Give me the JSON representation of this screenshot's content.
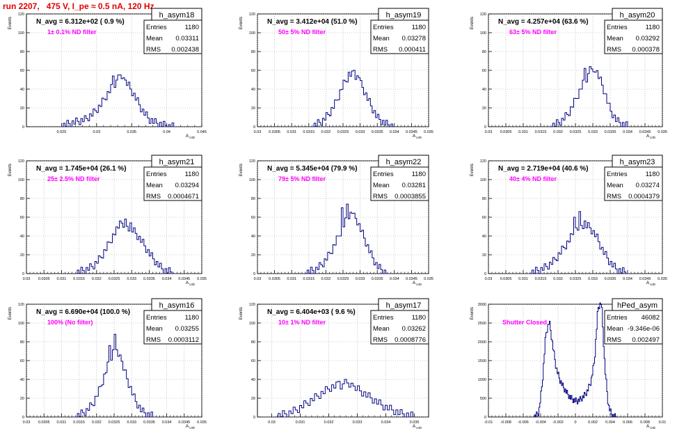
{
  "page_title": "run 2207,   475 V, I_pe ≈ 0.5 nA, 120 Hz",
  "colors": {
    "histogram": "#000080",
    "annotation": "#ff00ff",
    "title": "#e00000",
    "text": "#000000",
    "grid": "#999999"
  },
  "stats_labels": {
    "entries": "Entries",
    "mean": "Mean",
    "rms": "RMS"
  },
  "ylabel": "Events",
  "xlabel_main": "A",
  "xlabel_sub": "UID",
  "chart_data": [
    {
      "type": "bar",
      "name": "h_asym18",
      "stats": {
        "entries": "1180",
        "mean": "0.03311",
        "rms": "0.002438"
      },
      "navg": "N_avg = 6.312e+02 ( 0.9 %)",
      "annotation": "1± 0.1% ND filter",
      "xlim": [
        0.02,
        0.045
      ],
      "ylim": [
        0,
        120
      ],
      "xticks": [
        "0.025",
        "0.03",
        "0.035",
        "0.04",
        "0.045"
      ],
      "xticks_vals": [
        0.025,
        0.03,
        0.035,
        0.04,
        0.045
      ],
      "yticks": [
        0,
        20,
        40,
        60,
        80,
        100,
        120
      ],
      "x": [
        0.0255,
        0.0265,
        0.0275,
        0.0285,
        0.0295,
        0.0305,
        0.0315,
        0.0325,
        0.0335,
        0.0345,
        0.0355,
        0.0365,
        0.0375,
        0.0385,
        0.0395,
        0.0405
      ],
      "values": [
        2,
        4,
        6,
        8,
        14,
        22,
        34,
        45,
        52,
        45,
        32,
        18,
        8,
        4,
        2,
        0
      ],
      "peaks": [
        55,
        54,
        52
      ]
    },
    {
      "type": "bar",
      "name": "h_asym19",
      "stats": {
        "entries": "1180",
        "mean": "0.03278",
        "rms": "0.000411"
      },
      "navg": "N_avg = 3.412e+04 (51.0 %)",
      "annotation": "50± 5% ND filter",
      "xlim": [
        0.03,
        0.035
      ],
      "ylim": [
        0,
        120
      ],
      "xticks": [
        "0.03",
        "0.0305",
        "0.031",
        "0.0315",
        "0.032",
        "0.0325",
        "0.033",
        "0.0335",
        "0.034",
        "0.0345",
        "0.035"
      ],
      "xticks_vals": [
        0.03,
        0.0305,
        0.031,
        0.0315,
        0.032,
        0.0325,
        0.033,
        0.0335,
        0.034,
        0.0345,
        0.035
      ],
      "yticks": [
        0,
        20,
        40,
        60,
        80,
        100,
        120
      ],
      "x": [
        0.0317,
        0.0319,
        0.0321,
        0.0323,
        0.0325,
        0.0327,
        0.0329,
        0.0331,
        0.0333,
        0.0335,
        0.0337,
        0.0339
      ],
      "values": [
        2,
        6,
        14,
        26,
        44,
        56,
        54,
        40,
        24,
        10,
        4,
        1
      ],
      "peaks": [
        60,
        58,
        52
      ]
    },
    {
      "type": "bar",
      "name": "h_asym20",
      "stats": {
        "entries": "1180",
        "mean": "0.03292",
        "rms": "0.000378"
      },
      "navg": "N_avg = 4.257e+04 (63.6 %)",
      "annotation": "63± 5% ND filter",
      "xlim": [
        0.03,
        0.035
      ],
      "ylim": [
        0,
        120
      ],
      "xticks": [
        "0.03",
        "0.0305",
        "0.031",
        "0.0315",
        "0.032",
        "0.0325",
        "0.033",
        "0.0335",
        "0.034",
        "0.0345",
        "0.035"
      ],
      "xticks_vals": [
        0.03,
        0.0305,
        0.031,
        0.0315,
        0.032,
        0.0325,
        0.033,
        0.0335,
        0.034,
        0.0345,
        0.035
      ],
      "yticks": [
        0,
        20,
        40,
        60,
        80,
        100,
        120
      ],
      "x": [
        0.0319,
        0.0321,
        0.0323,
        0.0325,
        0.0327,
        0.0329,
        0.0331,
        0.0333,
        0.0335,
        0.0337,
        0.0339
      ],
      "values": [
        2,
        6,
        14,
        28,
        44,
        56,
        60,
        42,
        18,
        6,
        2
      ],
      "peaks": [
        64,
        62,
        58
      ]
    },
    {
      "type": "bar",
      "name": "h_asym21",
      "stats": {
        "entries": "1180",
        "mean": "0.03294",
        "rms": "0.0004671"
      },
      "navg": "N_avg = 1.745e+04 (26.1 %)",
      "annotation": "25± 2.5% ND filter",
      "xlim": [
        0.03,
        0.035
      ],
      "ylim": [
        0,
        120
      ],
      "xticks": [
        "0.03",
        "0.0305",
        "0.031",
        "0.0315",
        "0.032",
        "0.0325",
        "0.033",
        "0.0335",
        "0.034",
        "0.0345",
        "0.035"
      ],
      "xticks_vals": [
        0.03,
        0.0305,
        0.031,
        0.0315,
        0.032,
        0.0325,
        0.033,
        0.0335,
        0.034,
        0.0345,
        0.035
      ],
      "yticks": [
        0,
        20,
        40,
        60,
        80,
        100,
        120
      ],
      "x": [
        0.0315,
        0.0317,
        0.0319,
        0.0321,
        0.0323,
        0.0325,
        0.0327,
        0.0329,
        0.0331,
        0.0333,
        0.0335,
        0.0337,
        0.0339,
        0.0341
      ],
      "values": [
        2,
        4,
        8,
        16,
        28,
        42,
        52,
        50,
        44,
        34,
        22,
        12,
        4,
        2
      ],
      "peaks": [
        58,
        56,
        54
      ]
    },
    {
      "type": "bar",
      "name": "h_asym22",
      "stats": {
        "entries": "1180",
        "mean": "0.03281",
        "rms": "0.0003855"
      },
      "navg": "N_avg = 5.345e+04 (79.9 %)",
      "annotation": "79± 5% ND filter",
      "xlim": [
        0.03,
        0.035
      ],
      "ylim": [
        0,
        120
      ],
      "xticks": [
        "0.03",
        "0.0305",
        "0.031",
        "0.0315",
        "0.032",
        "0.0325",
        "0.033",
        "0.0335",
        "0.034",
        "0.0345",
        "0.035"
      ],
      "xticks_vals": [
        0.03,
        0.0305,
        0.031,
        0.0315,
        0.032,
        0.0325,
        0.033,
        0.0335,
        0.034,
        0.0345,
        0.035
      ],
      "yticks": [
        0,
        20,
        40,
        60,
        80,
        100,
        120
      ],
      "x": [
        0.0315,
        0.0317,
        0.0319,
        0.0321,
        0.0323,
        0.0325,
        0.0327,
        0.0329,
        0.0331,
        0.0333,
        0.0335,
        0.0337
      ],
      "values": [
        2,
        4,
        10,
        20,
        34,
        50,
        64,
        58,
        40,
        22,
        8,
        2
      ],
      "peaks": [
        74,
        70,
        64
      ]
    },
    {
      "type": "bar",
      "name": "h_asym23",
      "stats": {
        "entries": "1180",
        "mean": "0.03274",
        "rms": "0.0004379"
      },
      "navg": "N_avg = 2.719e+04 (40.6 %)",
      "annotation": "40± 4% ND filter",
      "xlim": [
        0.03,
        0.035
      ],
      "ylim": [
        0,
        120
      ],
      "xticks": [
        "0.03",
        "0.0305",
        "0.031",
        "0.0315",
        "0.032",
        "0.0325",
        "0.033",
        "0.0335",
        "0.034",
        "0.0345",
        "0.035"
      ],
      "xticks_vals": [
        0.03,
        0.0305,
        0.031,
        0.0315,
        0.032,
        0.0325,
        0.033,
        0.0335,
        0.034,
        0.0345,
        0.035
      ],
      "yticks": [
        0,
        20,
        40,
        60,
        80,
        100,
        120
      ],
      "x": [
        0.0313,
        0.0315,
        0.0317,
        0.0319,
        0.0321,
        0.0323,
        0.0325,
        0.0327,
        0.0329,
        0.0331,
        0.0333,
        0.0335,
        0.0337,
        0.0339
      ],
      "values": [
        2,
        4,
        8,
        14,
        24,
        34,
        46,
        52,
        50,
        40,
        24,
        12,
        4,
        2
      ],
      "peaks": [
        66,
        60,
        56
      ]
    },
    {
      "type": "bar",
      "name": "h_asym16",
      "stats": {
        "entries": "1180",
        "mean": "0.03255",
        "rms": "0.0003112"
      },
      "navg": "N_avg = 6.690e+04 (100.0 %)",
      "annotation": "100% (No filter)",
      "xlim": [
        0.03,
        0.035
      ],
      "ylim": [
        0,
        120
      ],
      "xticks": [
        "0.03",
        "0.0305",
        "0.031",
        "0.0315",
        "0.032",
        "0.0325",
        "0.033",
        "0.0335",
        "0.034",
        "0.0345",
        "0.035"
      ],
      "xticks_vals": [
        0.03,
        0.0305,
        0.031,
        0.0315,
        0.032,
        0.0325,
        0.033,
        0.0335,
        0.034,
        0.0345,
        0.035
      ],
      "yticks": [
        0,
        20,
        40,
        60,
        80,
        100,
        120
      ],
      "x": [
        0.0315,
        0.0317,
        0.0319,
        0.0321,
        0.0323,
        0.0325,
        0.0327,
        0.0329,
        0.0331,
        0.0333,
        0.0335
      ],
      "values": [
        2,
        6,
        14,
        30,
        52,
        72,
        60,
        38,
        18,
        6,
        2
      ],
      "peaks": [
        88,
        76,
        66
      ]
    },
    {
      "type": "bar",
      "name": "h_asym17",
      "stats": {
        "entries": "1180",
        "mean": "0.03262",
        "rms": "0.0008776"
      },
      "navg": "N_avg = 6.404e+03 ( 9.6 %)",
      "annotation": "10± 1% ND filter",
      "xlim": [
        0.0295,
        0.0355
      ],
      "ylim": [
        0,
        120
      ],
      "xticks": [
        "0.03",
        "0.031",
        "0.032",
        "0.033",
        "0.034",
        "0.035"
      ],
      "xticks_vals": [
        0.03,
        0.031,
        0.032,
        0.033,
        0.034,
        0.035
      ],
      "yticks": [
        0,
        20,
        40,
        60,
        80,
        100,
        120
      ],
      "x": [
        0.0303,
        0.0306,
        0.0309,
        0.0312,
        0.0315,
        0.0318,
        0.0321,
        0.0324,
        0.0327,
        0.033,
        0.0333,
        0.0336,
        0.0339,
        0.0342,
        0.0345,
        0.0348
      ],
      "values": [
        2,
        4,
        8,
        14,
        20,
        26,
        32,
        34,
        32,
        30,
        24,
        18,
        12,
        8,
        4,
        2
      ],
      "peaks": [
        40,
        38,
        36
      ]
    },
    {
      "type": "bar",
      "name": "hPed_asym",
      "stats": {
        "entries": "46082",
        "mean": "-9.346e-06",
        "rms": "0.002497"
      },
      "navg": "",
      "annotation": "Shutter Closed",
      "xlim": [
        -0.01,
        0.01
      ],
      "ylim": [
        0,
        3000
      ],
      "xticks": [
        "-0.01",
        "-0.008",
        "-0.006",
        "-0.004",
        "-0.002",
        "0",
        "0.002",
        "0.004",
        "0.006",
        "0.008",
        "0.01"
      ],
      "xticks_vals": [
        -0.01,
        -0.008,
        -0.006,
        -0.004,
        -0.002,
        0,
        0.002,
        0.004,
        0.006,
        0.008,
        0.01
      ],
      "yticks": [
        0,
        500,
        1000,
        1500,
        2000,
        2500,
        3000
      ],
      "x": [
        -0.0046,
        -0.0042,
        -0.0038,
        -0.0034,
        -0.003,
        -0.0026,
        -0.0022,
        -0.0018,
        -0.0014,
        -0.001,
        -0.0006,
        -0.0002,
        0.0002,
        0.0006,
        0.001,
        0.0014,
        0.0018,
        0.0022,
        0.0026,
        0.003,
        0.0034,
        0.0038,
        0.0042,
        0.0046
      ],
      "values": [
        20,
        120,
        900,
        2200,
        2550,
        1900,
        1300,
        1000,
        800,
        650,
        520,
        450,
        420,
        470,
        560,
        700,
        950,
        1500,
        2900,
        3050,
        1300,
        300,
        40,
        5
      ],
      "peaks": []
    }
  ]
}
